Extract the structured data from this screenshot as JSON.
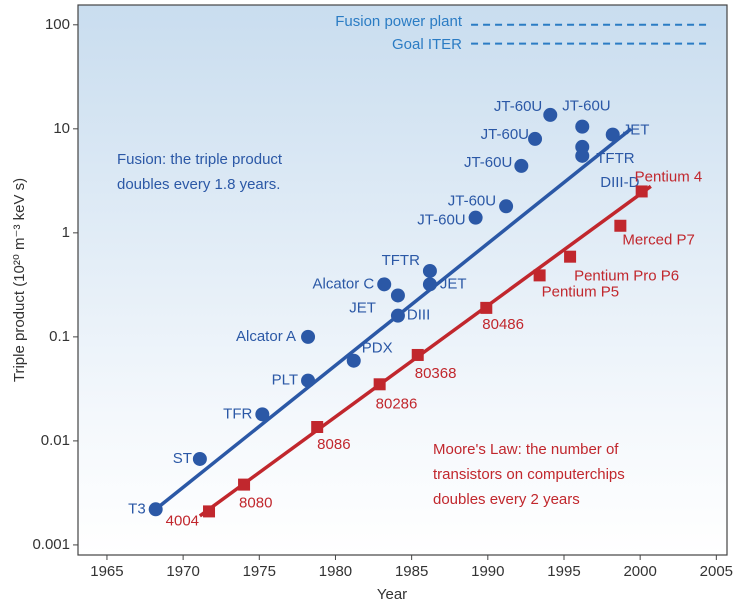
{
  "chart_data": {
    "type": "scatter",
    "x_label": "Year",
    "y_label": "Triple product (10²⁰ m⁻³ keV s)",
    "log_y": true,
    "xlim": [
      1963.1,
      2005.7
    ],
    "ylim": [
      0.0008,
      155
    ],
    "xticks": [
      1965,
      1970,
      1975,
      1980,
      1985,
      1990,
      1995,
      2000,
      2005
    ],
    "yticks": [
      0.001,
      0.01,
      0.1,
      1,
      10,
      100
    ],
    "series": [
      {
        "color": "#2b58a6",
        "marker": "circle",
        "x": [
          1968.2,
          1971.1,
          1975.2,
          1978.2,
          1978.2,
          1981.2,
          1983.2,
          1984.1,
          1984.1,
          1986.2,
          1986.2,
          1989.2,
          1991.2,
          1992.2,
          1993.1,
          1994.1,
          1996.2,
          1998.2,
          1996.2,
          1996.2
        ],
        "values": [
          0.0022,
          0.0067,
          0.018,
          0.038,
          0.1,
          0.059,
          0.32,
          0.25,
          0.16,
          0.43,
          0.32,
          1.4,
          1.8,
          4.4,
          8.0,
          13.6,
          10.5,
          8.8,
          6.7,
          5.5
        ],
        "point_labels": [
          "T3",
          "ST",
          "TFR",
          "PLT",
          "Alcator A",
          "PDX",
          "Alcator C",
          "JET",
          "DIII",
          "TFTR",
          "JET",
          "JT-60U",
          "JT-60U",
          "JT-60U",
          "JT-60U",
          "JT-60U",
          "JT-60U",
          "JET",
          "TFTR",
          "DIII-D"
        ],
        "trend": {
          "x": [
            1968.2,
            1999.4
          ],
          "values": [
            0.0022,
            10
          ]
        }
      },
      {
        "color": "#c1272d",
        "marker": "square",
        "x": [
          1971.7,
          1974.0,
          1978.8,
          1982.9,
          1985.4,
          1989.9,
          1993.4,
          1995.4,
          1998.7,
          2000.1
        ],
        "values": [
          0.0021,
          0.0038,
          0.0136,
          0.035,
          0.067,
          0.19,
          0.39,
          0.59,
          1.17,
          2.5
        ],
        "point_labels": [
          "4004",
          "8080",
          "8086",
          "80286",
          "80368",
          "80486",
          "Pentium P5",
          "Pentium Pro P6",
          "Merced P7",
          "Pentium 4"
        ],
        "trend": {
          "x": [
            1971.1,
            2000.7
          ],
          "values": [
            0.0019,
            2.8
          ]
        }
      }
    ],
    "reference_lines": [
      {
        "label": "Fusion power plant",
        "value": 100,
        "x": [
          1988.9,
          2004.4
        ],
        "color": "#2b7cc4"
      },
      {
        "label": "Goal ITER",
        "value": 66,
        "x": [
          1988.9,
          2004.4
        ],
        "color": "#2b7cc4"
      }
    ],
    "annotations": [
      {
        "lines": [
          "Fusion: the triple product",
          "doubles every 1.8 years."
        ],
        "color": "#2b58a6"
      },
      {
        "lines": [
          "Moore's Law: the number of",
          "transistors on computerchips",
          "doubles every 2 years"
        ],
        "color": "#c1272d"
      }
    ]
  }
}
